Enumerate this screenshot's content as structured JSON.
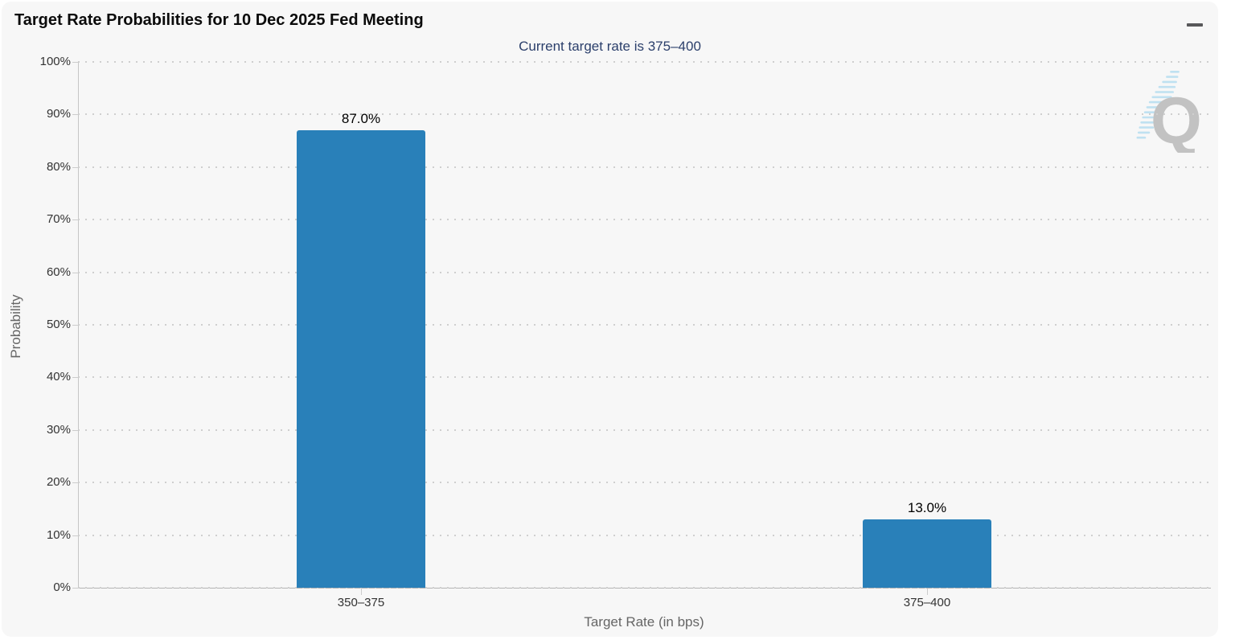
{
  "header": {
    "title": "Target Rate Probabilities for 10 Dec 2025 Fed Meeting",
    "menu_icon": "hamburger-menu-icon"
  },
  "watermark": {
    "letter": "Q",
    "letter_color": "#c2c2c2",
    "dash_color": "#b5ddf0"
  },
  "chart_data": {
    "type": "bar",
    "title": "Target Rate Probabilities for 10 Dec 2025 Fed Meeting",
    "subtitle": "Current target rate is 375–400",
    "categories": [
      "350–375",
      "375–400"
    ],
    "values": [
      87.0,
      13.0
    ],
    "data_labels": [
      "87.0%",
      "13.0%"
    ],
    "xlabel": "Target Rate (in bps)",
    "ylabel": "Probability",
    "ylim": [
      0,
      100
    ],
    "ytick_step": 10,
    "ytick_suffix": "%",
    "bar_color": "#2980b9",
    "grid": "dotted-horizontal",
    "legend": "none",
    "background_color": "#f7f7f7"
  }
}
